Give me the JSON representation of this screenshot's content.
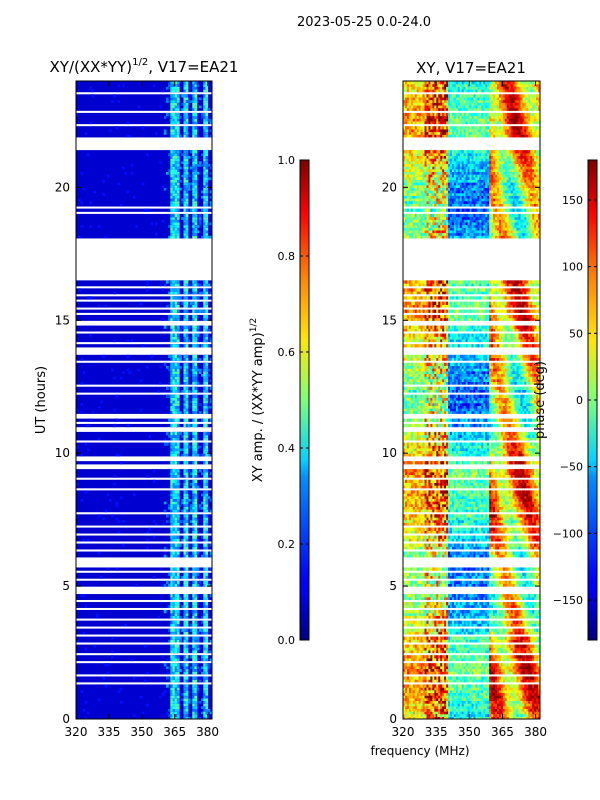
{
  "suptitle": "2023-05-25 0.0-24.0",
  "chart_data": [
    {
      "type": "heatmap",
      "id": "amp",
      "title": "XY/(XX*YY)^1/2, V17=EA21",
      "title_main": "XY/(XX*YY)",
      "title_exp": "1/2",
      "title_tail": ", V17=EA21",
      "xlabel": "",
      "ylabel": "UT (hours)",
      "xlim": [
        320,
        382
      ],
      "ylim": [
        0,
        24
      ],
      "xticks": [
        320,
        335,
        350,
        365,
        380
      ],
      "yticks": [
        0,
        5,
        10,
        15,
        20
      ],
      "colorbar": {
        "label": "XY amp. / (XX*YY amp)^1/2",
        "label_main": "XY amp. / (XX*YY amp)",
        "label_exp": "1/2",
        "range": [
          0.0,
          1.0
        ],
        "ticks": [
          "0.0",
          "0.2",
          "0.4",
          "0.6",
          "0.8",
          "1.0"
        ],
        "tick_values": [
          0.0,
          0.2,
          0.4,
          0.6,
          0.8,
          1.0
        ],
        "colormap": "jet"
      },
      "features": {
        "background_value": 0.08,
        "band_ranges_mhz": [
          [
            363,
            367
          ],
          [
            369,
            371
          ],
          [
            373,
            375
          ],
          [
            378,
            380
          ]
        ],
        "band_value": 0.35
      }
    },
    {
      "type": "heatmap",
      "id": "phase",
      "title": "XY, V17=EA21",
      "xlabel": "frequency (MHz)",
      "ylabel": "",
      "xlim": [
        320,
        382
      ],
      "ylim": [
        0,
        24
      ],
      "xticks": [
        320,
        335,
        350,
        365,
        380
      ],
      "yticks": [
        0,
        5,
        10,
        15,
        20
      ],
      "colorbar": {
        "label": "phase (deg)",
        "range": [
          -180,
          180
        ],
        "ticks": [
          "150",
          "100",
          "50",
          "0",
          "−50",
          "−100",
          "−150"
        ],
        "tick_values": [
          150,
          100,
          50,
          0,
          -50,
          -100,
          -150
        ],
        "colormap": "jet"
      },
      "features": {
        "noisy_band_mhz": [
          330,
          340
        ],
        "step_frequency_mhz": 359
      }
    }
  ],
  "flagged_ut_ranges_hours": [
    [
      23.5,
      23.55
    ],
    [
      22.8,
      22.9
    ],
    [
      22.3,
      22.35
    ],
    [
      21.9,
      21.45
    ],
    [
      19.25,
      19.3
    ],
    [
      19.05,
      19.1
    ],
    [
      18.05,
      17.1
    ],
    [
      17.05,
      16.5
    ],
    [
      16.2,
      16.25
    ],
    [
      15.95,
      16.0
    ],
    [
      15.7,
      15.75
    ],
    [
      15.45,
      15.5
    ],
    [
      15.2,
      15.25
    ],
    [
      14.8,
      14.95
    ],
    [
      14.5,
      14.55
    ],
    [
      14.15,
      14.2
    ],
    [
      13.95,
      13.75
    ],
    [
      13.4,
      13.45
    ],
    [
      12.55,
      12.6
    ],
    [
      12.25,
      12.2
    ],
    [
      11.35,
      11.5
    ],
    [
      11.15,
      11.2
    ],
    [
      10.95,
      10.85
    ],
    [
      10.45,
      10.5
    ],
    [
      9.85,
      9.7
    ],
    [
      9.55,
      9.4
    ],
    [
      9.05,
      9.1
    ],
    [
      8.6,
      8.65
    ],
    [
      7.75,
      7.8
    ],
    [
      7.25,
      7.3
    ],
    [
      7.0,
      6.9
    ],
    [
      6.6,
      6.65
    ],
    [
      6.35,
      6.4
    ],
    [
      6.05,
      5.75
    ],
    [
      5.55,
      5.6
    ],
    [
      5.25,
      5.3
    ],
    [
      5.0,
      4.75
    ],
    [
      4.45,
      4.5
    ],
    [
      4.15,
      4.2
    ],
    [
      3.7,
      3.75
    ],
    [
      3.45,
      3.5
    ],
    [
      3.1,
      3.15
    ],
    [
      2.8,
      2.85
    ],
    [
      2.45,
      2.5
    ],
    [
      2.1,
      2.15
    ],
    [
      1.65,
      1.7
    ],
    [
      1.3,
      1.35
    ]
  ]
}
